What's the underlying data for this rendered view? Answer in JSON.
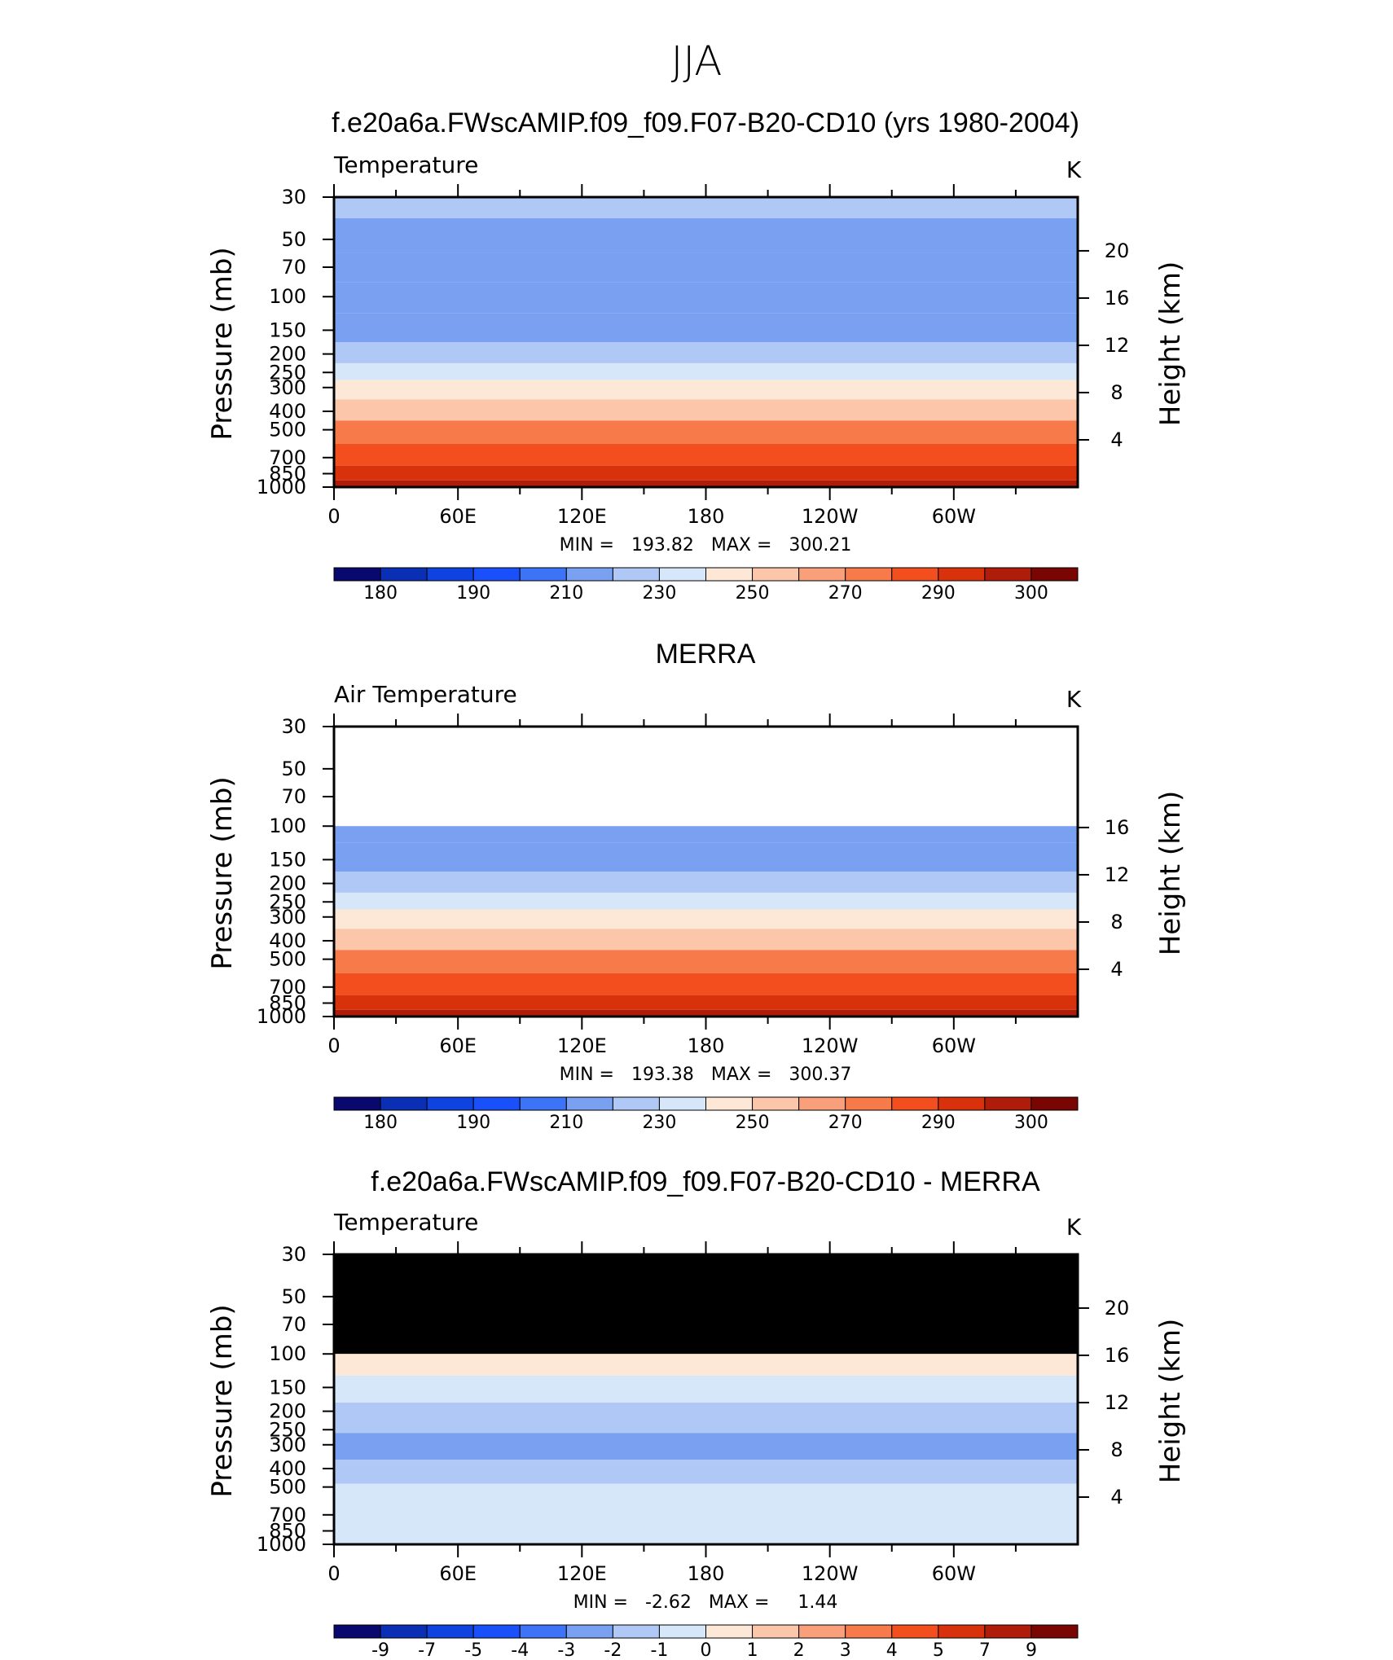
{
  "main_title": "JJA",
  "colors": {
    "temperature_scale": [
      "#08086e",
      "#0a2fb4",
      "#0f43e0",
      "#1a50fa",
      "#3c73f7",
      "#7aa0f2",
      "#b0c8f5",
      "#d7e7fa",
      "#fde8d7",
      "#fcc6aa",
      "#f99f7a",
      "#f77a4b",
      "#f24e1e",
      "#d8320c",
      "#b01c0a",
      "#7a0603"
    ],
    "difference_scale": [
      "#08086e",
      "#0a2fb4",
      "#0f43e0",
      "#1a50fa",
      "#3c73f7",
      "#7aa0f2",
      "#b0c8f5",
      "#d7e7fa",
      "#fde8d7",
      "#fcc6aa",
      "#f99f7a",
      "#f77a4b",
      "#f24e1e",
      "#d8320c",
      "#b01c0a",
      "#7a0603"
    ],
    "missing": "#000000"
  },
  "chart_data": [
    {
      "type": "heatmap",
      "title": "f.e20a6a.FWscAMIP.f09_f09.F07-B20-CD10 (yrs 1980-2004)",
      "subtitle_left": "Temperature",
      "units": "K",
      "ylabel": "Pressure (mb)",
      "ylabel_right": "Height (km)",
      "pressure_ticks": [
        "30",
        "50",
        "70",
        "100",
        "150",
        "200",
        "250",
        "300",
        "400",
        "500",
        "700",
        "850",
        "1000"
      ],
      "height_ticks": [
        "20",
        "16",
        "12",
        "8",
        "4"
      ],
      "lon_ticks": [
        "0",
        "60E",
        "120E",
        "180",
        "120W",
        "60W"
      ],
      "stats": "MIN =   193.82   MAX =   300.21",
      "min": 193.82,
      "max": 300.21,
      "ylim": [
        1000,
        30
      ],
      "colorbar_labels": [
        "180",
        "190",
        "210",
        "230",
        "250",
        "270",
        "290",
        "300"
      ],
      "profile": [
        {
          "p": 30,
          "t": 212
        },
        {
          "p": 50,
          "t": 207
        },
        {
          "p": 70,
          "t": 205
        },
        {
          "p": 100,
          "t": 201
        },
        {
          "p": 150,
          "t": 205
        },
        {
          "p": 200,
          "t": 214
        },
        {
          "p": 250,
          "t": 222
        },
        {
          "p": 300,
          "t": 232
        },
        {
          "p": 400,
          "t": 248
        },
        {
          "p": 500,
          "t": 260
        },
        {
          "p": 700,
          "t": 275
        },
        {
          "p": 850,
          "t": 284
        },
        {
          "p": 1000,
          "t": 292
        }
      ]
    },
    {
      "type": "heatmap",
      "title": "MERRA",
      "subtitle_left": "Air Temperature",
      "units": "K",
      "ylabel": "Pressure (mb)",
      "ylabel_right": "Height (km)",
      "pressure_ticks": [
        "30",
        "50",
        "70",
        "100",
        "150",
        "200",
        "250",
        "300",
        "400",
        "500",
        "700",
        "850",
        "1000"
      ],
      "height_ticks": [
        "16",
        "12",
        "8",
        "4"
      ],
      "lon_ticks": [
        "0",
        "60E",
        "120E",
        "180",
        "120W",
        "60W"
      ],
      "stats": "MIN =   193.38   MAX =   300.37",
      "min": 193.38,
      "max": 300.37,
      "ylim": [
        1000,
        30
      ],
      "data_top_pressure": 100,
      "colorbar_labels": [
        "180",
        "190",
        "210",
        "230",
        "250",
        "270",
        "290",
        "300"
      ],
      "profile": [
        {
          "p": 100,
          "t": 201
        },
        {
          "p": 150,
          "t": 205
        },
        {
          "p": 200,
          "t": 214
        },
        {
          "p": 250,
          "t": 222
        },
        {
          "p": 300,
          "t": 232
        },
        {
          "p": 400,
          "t": 248
        },
        {
          "p": 500,
          "t": 260
        },
        {
          "p": 700,
          "t": 275
        },
        {
          "p": 850,
          "t": 284
        },
        {
          "p": 1000,
          "t": 292
        }
      ]
    },
    {
      "type": "heatmap",
      "title": "f.e20a6a.FWscAMIP.f09_f09.F07-B20-CD10 - MERRA",
      "subtitle_left": "Temperature",
      "units": "K",
      "ylabel": "Pressure (mb)",
      "ylabel_right": "Height (km)",
      "pressure_ticks": [
        "30",
        "50",
        "70",
        "100",
        "150",
        "200",
        "250",
        "300",
        "400",
        "500",
        "700",
        "850",
        "1000"
      ],
      "height_ticks": [
        "20",
        "16",
        "12",
        "8",
        "4"
      ],
      "lon_ticks": [
        "0",
        "60E",
        "120E",
        "180",
        "120W",
        "60W"
      ],
      "stats": "MIN =   -2.62   MAX =     1.44",
      "min": -2.62,
      "max": 1.44,
      "ylim": [
        1000,
        30
      ],
      "missing_above_pressure": 100,
      "colorbar_labels": [
        "-9",
        "-7",
        "-5",
        "-4",
        "-3",
        "-2",
        "-1",
        "0",
        "1",
        "2",
        "3",
        "4",
        "5",
        "7",
        "9"
      ],
      "bands": [
        {
          "p_top": 100,
          "p_bottom": 130,
          "value": 0.3
        },
        {
          "p_top": 130,
          "p_bottom": 180,
          "value": -0.6
        },
        {
          "p_top": 180,
          "p_bottom": 260,
          "value": -1.2
        },
        {
          "p_top": 260,
          "p_bottom": 360,
          "value": -2.1
        },
        {
          "p_top": 360,
          "p_bottom": 480,
          "value": -1.3
        },
        {
          "p_top": 480,
          "p_bottom": 1000,
          "value": -0.4
        }
      ]
    }
  ]
}
